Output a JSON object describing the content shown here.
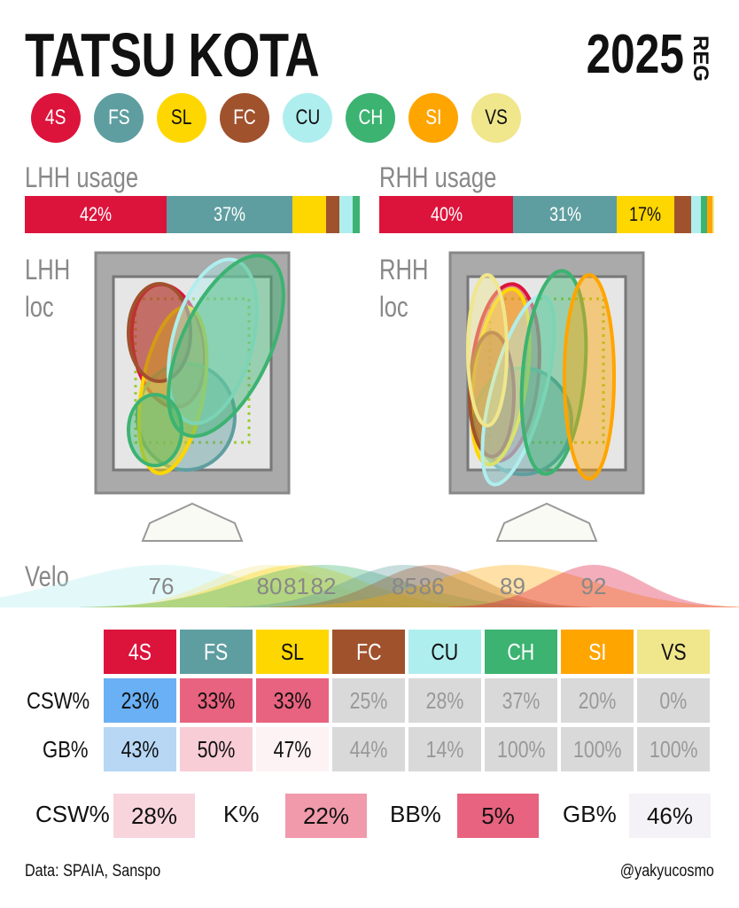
{
  "header": {
    "title": "TATSU KOTA",
    "year": "2025",
    "season": "REG"
  },
  "pitches": [
    {
      "code": "4S",
      "color": "#DC143C",
      "text": "#ffffff"
    },
    {
      "code": "FS",
      "color": "#5F9EA0",
      "text": "#ffffff"
    },
    {
      "code": "SL",
      "color": "#FFD700",
      "text": "#111111"
    },
    {
      "code": "FC",
      "color": "#A0522D",
      "text": "#ffffff"
    },
    {
      "code": "CU",
      "color": "#AFEEEE",
      "text": "#111111"
    },
    {
      "code": "CH",
      "color": "#3CB371",
      "text": "#ffffff"
    },
    {
      "code": "SI",
      "color": "#FFA500",
      "text": "#ffffff"
    },
    {
      "code": "VS",
      "color": "#F0E68C",
      "text": "#111111"
    }
  ],
  "usage": {
    "lhh": {
      "label": "LHH usage",
      "values": {
        "4S": 42,
        "FS": 37,
        "SL": 10,
        "FC": 4,
        "CU": 4,
        "CH": 2,
        "SI": 0,
        "VS": 0
      },
      "labels": {
        "4S": "42%",
        "FS": "37%"
      }
    },
    "rhh": {
      "label": "RHH usage",
      "values": {
        "4S": 40,
        "FS": 31,
        "SL": 17,
        "FC": 5,
        "CU": 3,
        "CH": 2,
        "SI": 1.5,
        "VS": 0.5
      },
      "labels": {
        "4S": "40%",
        "FS": "31%",
        "SL": "17%"
      }
    }
  },
  "location": {
    "lhh": {
      "label1": "LHH",
      "label2": "loc"
    },
    "rhh": {
      "label1": "RHH",
      "label2": "loc"
    }
  },
  "chart_data": {
    "type": "area",
    "label": "Velo",
    "peaks": [
      {
        "pitch": "CU",
        "velo": 76,
        "label": "76"
      },
      {
        "pitch": "VS",
        "velo": 80,
        "label": "80"
      },
      {
        "pitch": "SL",
        "velo": 81,
        "label": "81"
      },
      {
        "pitch": "CH",
        "velo": 82,
        "label": "82"
      },
      {
        "pitch": "FS",
        "velo": 85,
        "label": "85"
      },
      {
        "pitch": "FC",
        "velo": 86,
        "label": "86"
      },
      {
        "pitch": "SI",
        "velo": 89,
        "label": "89"
      },
      {
        "pitch": "4S",
        "velo": 92,
        "label": "92"
      }
    ]
  },
  "table": {
    "rows": [
      {
        "label": "CSW%",
        "cells": [
          {
            "v": "23%",
            "bg": "#6AB0F5",
            "fg": "#111"
          },
          {
            "v": "33%",
            "bg": "#E8637F",
            "fg": "#111"
          },
          {
            "v": "33%",
            "bg": "#E8637F",
            "fg": "#111"
          },
          {
            "v": "25%",
            "bg": "#D9D9D9",
            "fg": "#999"
          },
          {
            "v": "28%",
            "bg": "#D9D9D9",
            "fg": "#999"
          },
          {
            "v": "37%",
            "bg": "#D9D9D9",
            "fg": "#999"
          },
          {
            "v": "20%",
            "bg": "#D9D9D9",
            "fg": "#999"
          },
          {
            "v": "0%",
            "bg": "#D9D9D9",
            "fg": "#999"
          }
        ]
      },
      {
        "label": "GB%",
        "cells": [
          {
            "v": "43%",
            "bg": "#B7D7F5",
            "fg": "#111"
          },
          {
            "v": "50%",
            "bg": "#F8CDD6",
            "fg": "#111"
          },
          {
            "v": "47%",
            "bg": "#FDF2F4",
            "fg": "#111"
          },
          {
            "v": "44%",
            "bg": "#D9D9D9",
            "fg": "#999"
          },
          {
            "v": "14%",
            "bg": "#D9D9D9",
            "fg": "#999"
          },
          {
            "v": "100%",
            "bg": "#D9D9D9",
            "fg": "#999"
          },
          {
            "v": "100%",
            "bg": "#D9D9D9",
            "fg": "#999"
          },
          {
            "v": "100%",
            "bg": "#D9D9D9",
            "fg": "#999"
          }
        ]
      }
    ]
  },
  "summary": [
    {
      "label": "CSW%",
      "value": "28%",
      "bg": "#F8D5DC"
    },
    {
      "label": "K%",
      "value": "22%",
      "bg": "#F09AAB"
    },
    {
      "label": "BB%",
      "value": "5%",
      "bg": "#E8637F"
    },
    {
      "label": "GB%",
      "value": "46%",
      "bg": "#F4F2F6"
    }
  ],
  "footer": {
    "source": "Data: SPAIA, Sanspo",
    "credit": "@yakyucosmo"
  }
}
